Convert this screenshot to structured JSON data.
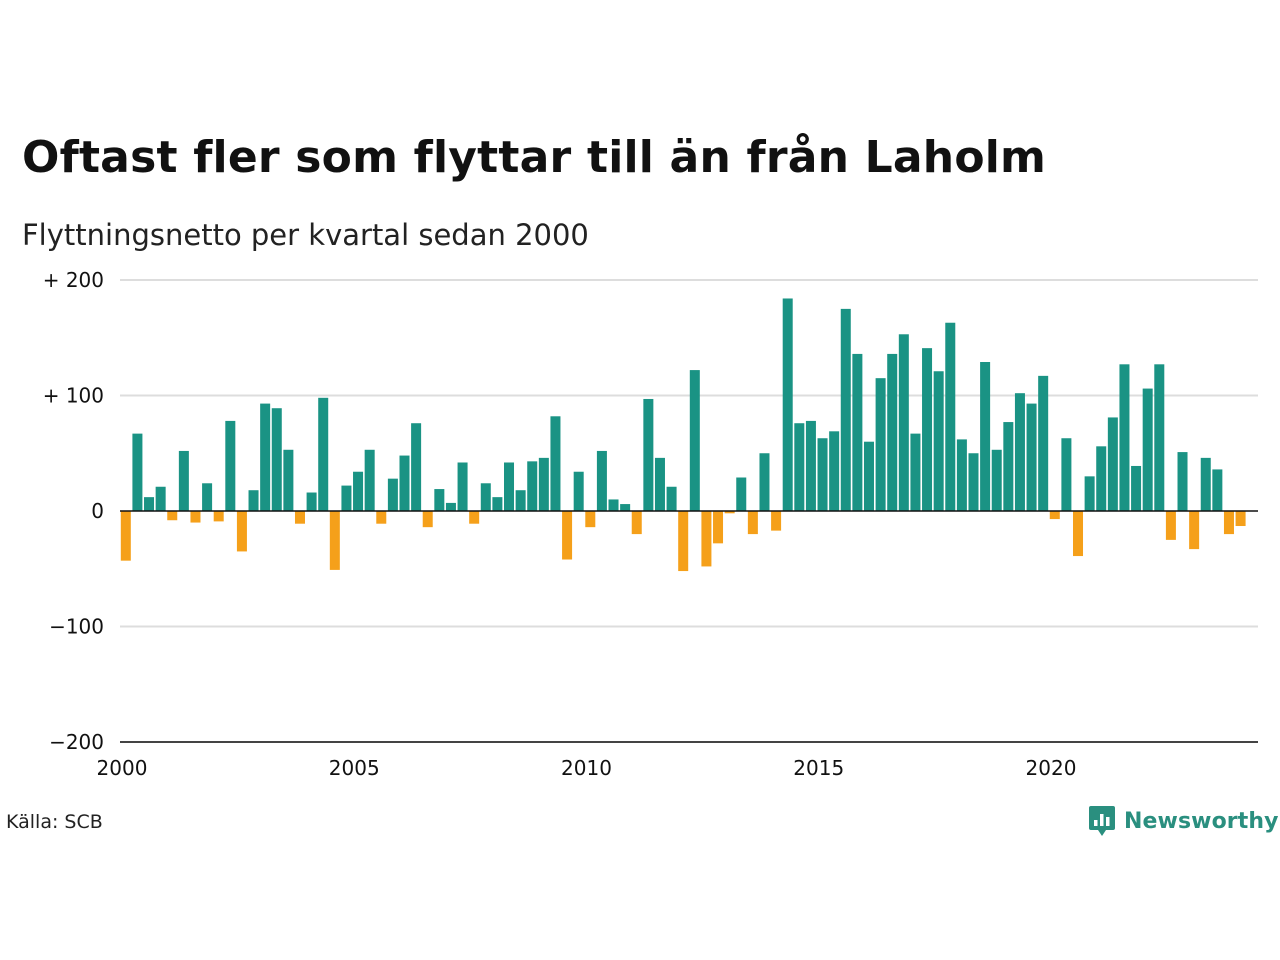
{
  "title": "Oftast fler som flyttar till än från Laholm",
  "subtitle": "Flyttningsnetto per kvartal sedan 2000",
  "source": "Källa: SCB",
  "brand": {
    "name": "Newsworthy",
    "icon": "newsworthy-logo-icon",
    "color": "#2a8f7f"
  },
  "colors": {
    "positive": "#1a9384",
    "negative": "#f5a01a",
    "grid": "#dddddd",
    "zero": "#111111"
  },
  "chart_data": {
    "type": "bar",
    "title": "Oftast fler som flyttar till än från Laholm",
    "subtitle": "Flyttningsnetto per kvartal sedan 2000",
    "xlabel": "",
    "ylabel": "",
    "ylim": [
      -200,
      200
    ],
    "yticks": [
      200,
      100,
      0,
      -100,
      -200
    ],
    "ytick_labels": [
      "+ 200",
      "+ 100",
      "0",
      "−100",
      "−200"
    ],
    "xlim": [
      2000,
      2024.5
    ],
    "xticks": [
      2000,
      2005,
      2010,
      2015,
      2020
    ],
    "xtick_labels": [
      "2000",
      "2005",
      "2010",
      "2015",
      "2020"
    ],
    "grid": true,
    "start_year": 2000,
    "quarters_per_year": 4,
    "values": [
      -43,
      67,
      12,
      21,
      -8,
      52,
      -10,
      24,
      -9,
      78,
      -35,
      18,
      93,
      89,
      53,
      -11,
      16,
      98,
      -51,
      22,
      34,
      53,
      -11,
      28,
      48,
      76,
      -14,
      19,
      7,
      42,
      -11,
      24,
      12,
      42,
      18,
      43,
      46,
      82,
      -42,
      34,
      -14,
      52,
      10,
      6,
      -20,
      97,
      46,
      21,
      -52,
      122,
      -48,
      -28,
      -2,
      29,
      -20,
      50,
      -17,
      184,
      76,
      78,
      63,
      69,
      175,
      136,
      60,
      115,
      136,
      153,
      67,
      141,
      121,
      163,
      62,
      50,
      129,
      53,
      77,
      102,
      93,
      117,
      -7,
      63,
      -39,
      30,
      56,
      81,
      127,
      39,
      106,
      127,
      -25,
      51,
      -33,
      46,
      36,
      -20,
      -13
    ]
  }
}
